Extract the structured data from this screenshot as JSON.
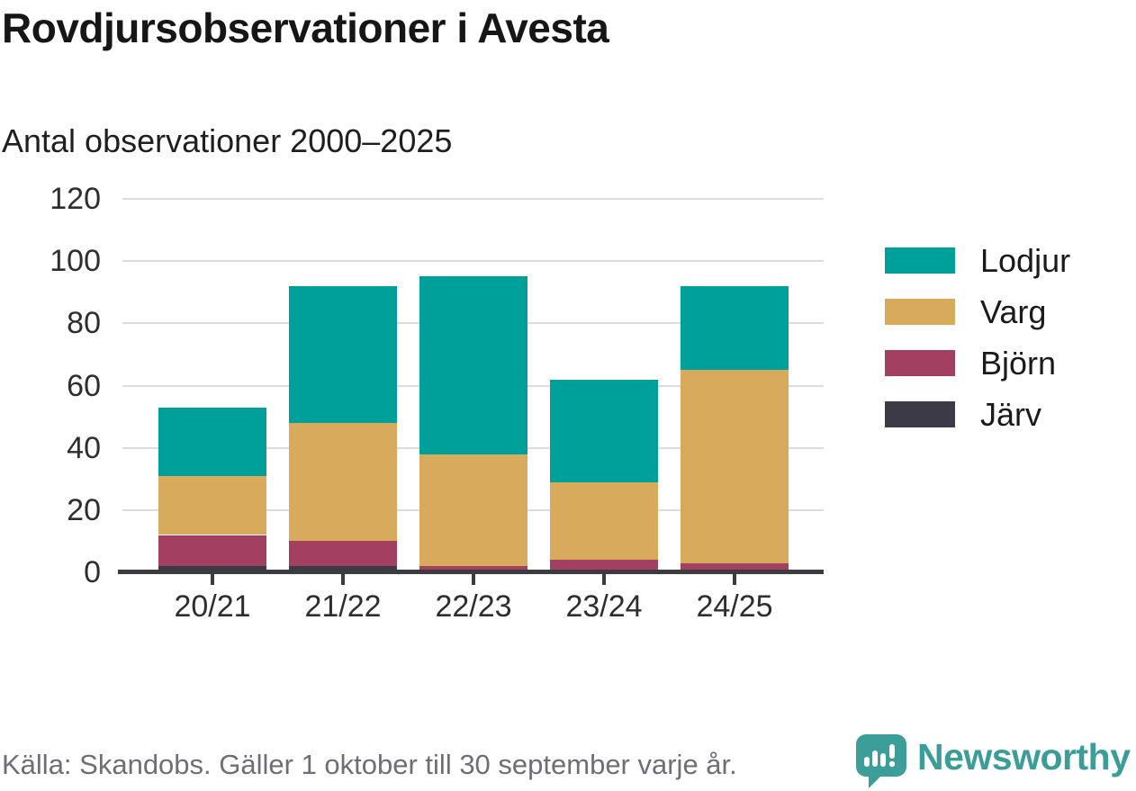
{
  "header": {
    "title": "Rovdjursobservationer i Avesta",
    "subtitle": "Antal observationer 2000–2025"
  },
  "chart_data": {
    "type": "bar",
    "stacked": true,
    "title": "Rovdjursobservationer i Avesta",
    "subtitle": "Antal observationer 2000–2025",
    "categories": [
      "20/21",
      "21/22",
      "22/23",
      "23/24",
      "24/25"
    ],
    "series": [
      {
        "name": "Järv",
        "color": "#3c3a46",
        "values": [
          2,
          2,
          0,
          0,
          0
        ]
      },
      {
        "name": "Björn",
        "color": "#a33f60",
        "values": [
          10,
          8,
          2,
          4,
          3
        ]
      },
      {
        "name": "Varg",
        "color": "#d8aa5b",
        "values": [
          19,
          38,
          36,
          25,
          62
        ]
      },
      {
        "name": "Lodjur",
        "color": "#00a09a",
        "values": [
          22,
          44,
          57,
          33,
          27
        ]
      }
    ],
    "totals": [
      53,
      92,
      95,
      62,
      92
    ],
    "xlabel": "",
    "ylabel": "",
    "ylim": [
      0,
      120
    ],
    "yticks": [
      0,
      20,
      40,
      60,
      80,
      100,
      120
    ],
    "grid": "horizontal",
    "legend": {
      "position": "right",
      "entries": [
        {
          "label": "Lodjur",
          "color": "#00a09a"
        },
        {
          "label": "Varg",
          "color": "#d8aa5b"
        },
        {
          "label": "Björn",
          "color": "#a33f60"
        },
        {
          "label": "Järv",
          "color": "#3c3a46"
        }
      ]
    }
  },
  "footer": {
    "source": "Källa: Skandobs. Gäller 1 oktober till 30 september varje år.",
    "brand": "Newsworthy",
    "logo_icon": "newsworthy-chart-bubble-icon"
  },
  "colors": {
    "background": "#ffffff",
    "axis": "#3b3b41",
    "gridline": "#dcdcdc",
    "title_text": "#161616",
    "tick_text": "#2e2e2e",
    "muted_text": "#6e6e78",
    "brand_teal": "#3b9d98"
  }
}
